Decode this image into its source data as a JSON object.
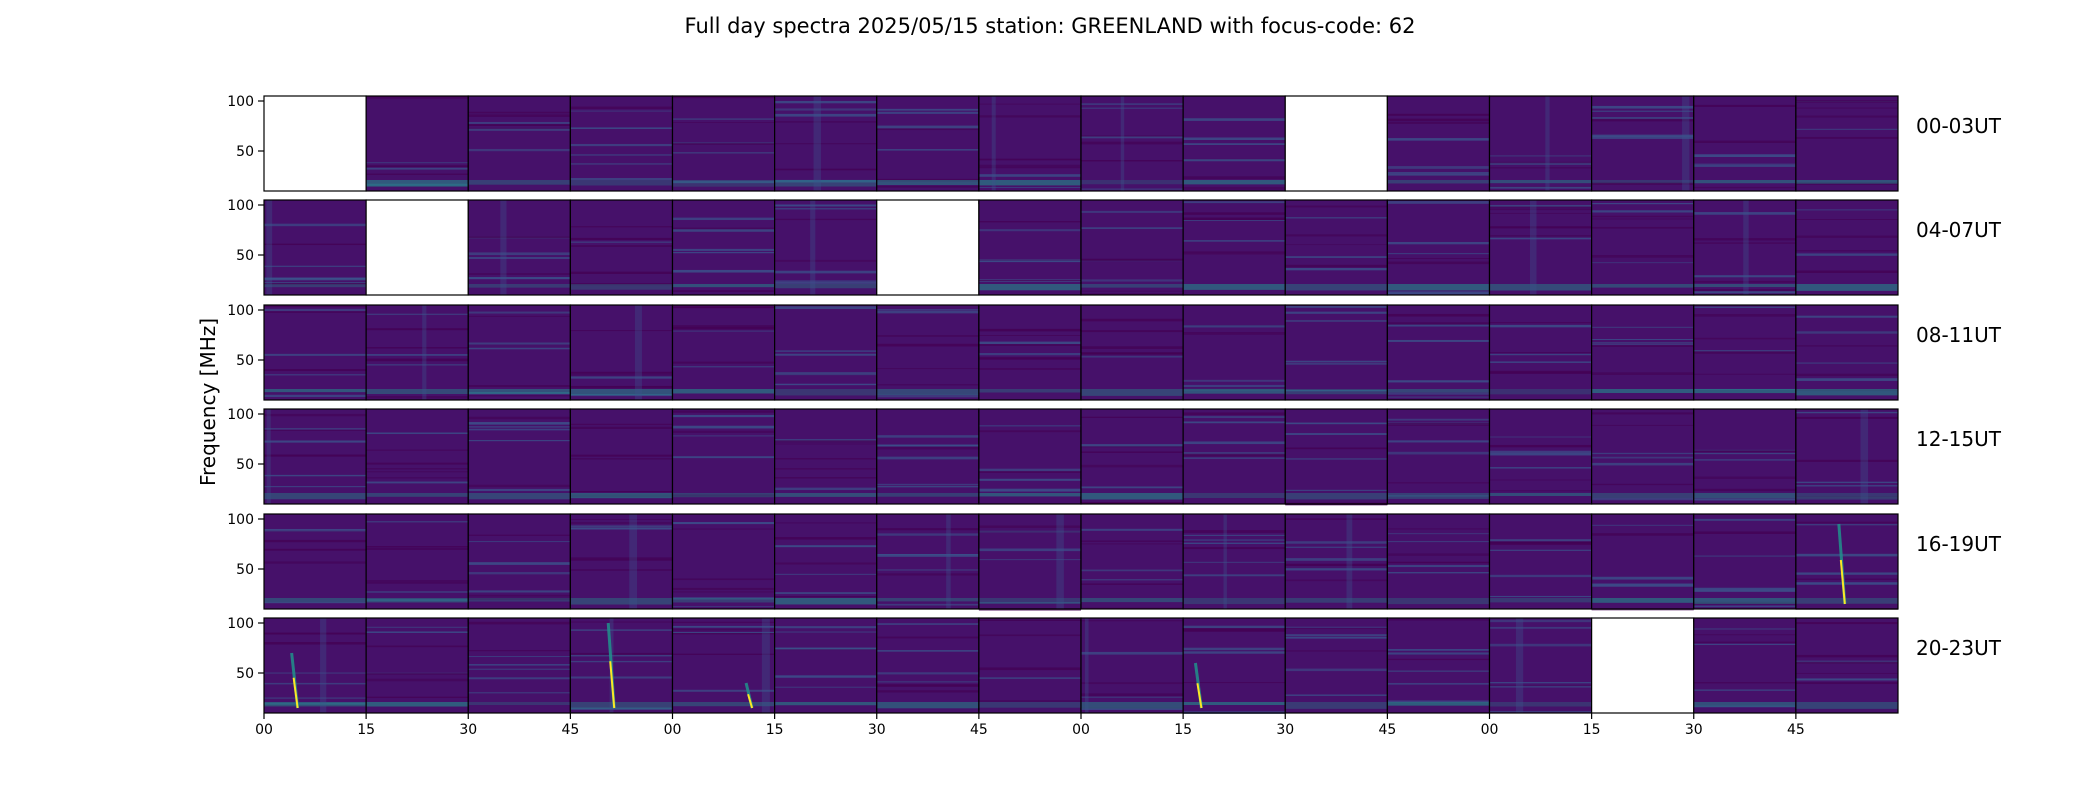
{
  "chart_data": {
    "type": "heatmap",
    "title": "Full day spectra 2025/05/15 station: GREENLAND with focus-code: 62",
    "ylabel": "Frequency [MHz]",
    "xlabel": "",
    "yticks": [
      "50",
      "100"
    ],
    "xticks": [
      "00",
      "15",
      "30",
      "45",
      "00",
      "15",
      "30",
      "45",
      "00",
      "15",
      "30",
      "45",
      "00",
      "15",
      "30",
      "45"
    ],
    "ylim": [
      10,
      105
    ],
    "rows": [
      {
        "label": "00-03UT",
        "missing": [
          0,
          10
        ],
        "bursts": []
      },
      {
        "label": "04-07UT",
        "missing": [
          1,
          6
        ],
        "bursts": []
      },
      {
        "label": "08-11UT",
        "missing": [],
        "bursts": []
      },
      {
        "label": "12-15UT",
        "missing": [],
        "bursts": []
      },
      {
        "label": "16-19UT",
        "missing": [],
        "bursts": [
          {
            "panel": 15,
            "time_frac": 0.45,
            "freq_low": 15,
            "freq_high": 95
          }
        ]
      },
      {
        "label": "20-23UT",
        "missing": [
          13
        ],
        "bursts": [
          {
            "panel": 0,
            "time_frac": 0.3,
            "freq_low": 15,
            "freq_high": 70
          },
          {
            "panel": 3,
            "time_frac": 0.4,
            "freq_low": 15,
            "freq_high": 100
          },
          {
            "panel": 9,
            "time_frac": 0.15,
            "freq_low": 15,
            "freq_high": 60
          },
          {
            "panel": 4,
            "time_frac": 0.75,
            "freq_low": 15,
            "freq_high": 40
          }
        ]
      }
    ],
    "colormap": [
      "#440154",
      "#3b528b",
      "#21918c",
      "#5ec962",
      "#fde725"
    ],
    "background_color": "#46116a",
    "missing_color": "#ffffff"
  }
}
